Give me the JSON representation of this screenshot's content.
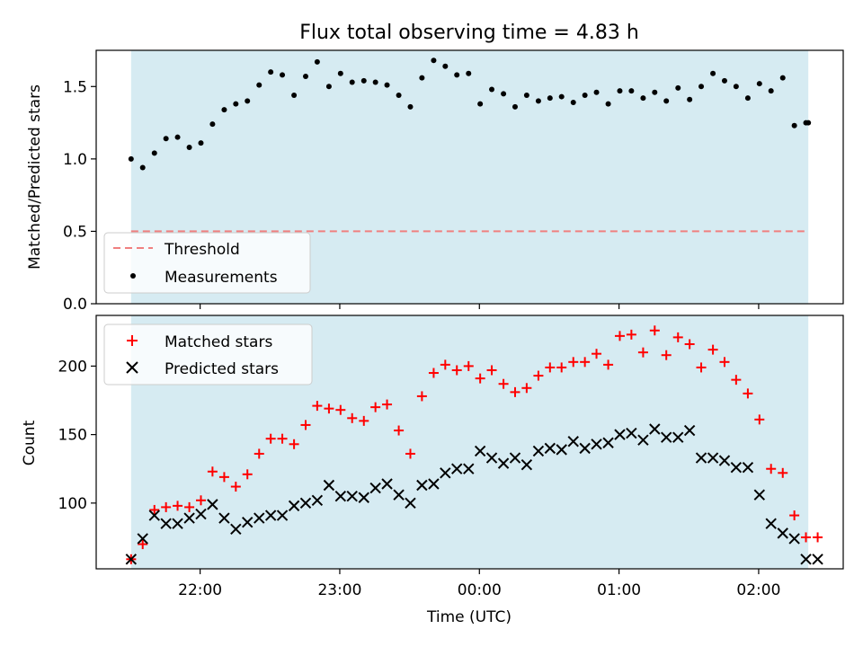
{
  "figure": {
    "title": "Flux total observing time = 4.83 h",
    "xlabel": "Time (UTC)",
    "x_ticks": [
      {
        "t": 21.9444,
        "label": "22:00"
      },
      {
        "t": 22.9444,
        "label": "23:00"
      },
      {
        "t": 23.9444,
        "label": "00:00"
      },
      {
        "t": 24.9444,
        "label": "01:00"
      },
      {
        "t": 25.9444,
        "label": "02:00"
      }
    ],
    "shade_color": "#add8e6",
    "shade_range": [
      21.45,
      26.3
    ]
  },
  "chart_data": [
    {
      "type": "scatter",
      "panel": "top",
      "ylabel": "Matched/Predicted stars",
      "xlim": [
        21.2,
        26.55
      ],
      "ylim": [
        0,
        1.75
      ],
      "yticks": [
        0.0,
        0.5,
        1.0,
        1.5
      ],
      "ytick_labels": [
        "0.0",
        "0.5",
        "1.0",
        "1.5"
      ],
      "legend_position": "lower-left",
      "threshold": {
        "name": "Threshold",
        "value": 0.5,
        "color": "#f08080"
      },
      "series": [
        {
          "name": "Measurements",
          "marker": "dot",
          "color": "#000000",
          "x": [
            21.45,
            21.533,
            21.617,
            21.7,
            21.783,
            21.867,
            21.95,
            22.033,
            22.117,
            22.2,
            22.283,
            22.367,
            22.45,
            22.533,
            22.617,
            22.7,
            22.783,
            22.867,
            22.95,
            23.033,
            23.117,
            23.2,
            23.283,
            23.367,
            23.45,
            23.533,
            23.617,
            23.7,
            23.783,
            23.867,
            23.95,
            24.033,
            24.117,
            24.2,
            24.283,
            24.367,
            24.45,
            24.533,
            24.617,
            24.7,
            24.783,
            24.867,
            24.95,
            25.033,
            25.117,
            25.2,
            25.283,
            25.367,
            25.45,
            25.533,
            25.617,
            25.7,
            25.783,
            25.867,
            25.95,
            26.033,
            26.117,
            26.2,
            26.283,
            26.3
          ],
          "values": [
            1.0,
            0.94,
            1.04,
            1.14,
            1.15,
            1.08,
            1.11,
            1.24,
            1.34,
            1.38,
            1.4,
            1.51,
            1.6,
            1.58,
            1.44,
            1.57,
            1.67,
            1.5,
            1.59,
            1.53,
            1.54,
            1.53,
            1.51,
            1.44,
            1.36,
            1.56,
            1.68,
            1.64,
            1.58,
            1.59,
            1.38,
            1.48,
            1.45,
            1.36,
            1.44,
            1.4,
            1.42,
            1.43,
            1.39,
            1.44,
            1.46,
            1.38,
            1.47,
            1.47,
            1.42,
            1.46,
            1.4,
            1.49,
            1.41,
            1.5,
            1.59,
            1.54,
            1.5,
            1.42,
            1.52,
            1.47,
            1.56,
            1.23,
            1.25,
            1.25
          ]
        }
      ]
    },
    {
      "type": "scatter",
      "panel": "bottom",
      "ylabel": "Count",
      "xlim": [
        21.2,
        26.55
      ],
      "ylim": [
        52,
        237
      ],
      "yticks": [
        100,
        150,
        200
      ],
      "ytick_labels": [
        "100",
        "150",
        "200"
      ],
      "legend_position": "upper-left",
      "series": [
        {
          "name": "Matched stars",
          "marker": "plus",
          "color": "#ff0000",
          "x": [
            21.45,
            21.533,
            21.617,
            21.7,
            21.783,
            21.867,
            21.95,
            22.033,
            22.117,
            22.2,
            22.283,
            22.367,
            22.45,
            22.533,
            22.617,
            22.7,
            22.783,
            22.867,
            22.95,
            23.033,
            23.117,
            23.2,
            23.283,
            23.367,
            23.45,
            23.533,
            23.617,
            23.7,
            23.783,
            23.867,
            23.95,
            24.033,
            24.117,
            24.2,
            24.283,
            24.367,
            24.45,
            24.533,
            24.617,
            24.7,
            24.783,
            24.867,
            24.95,
            25.033,
            25.117,
            25.2,
            25.283,
            25.367,
            25.45,
            25.533,
            25.617,
            25.7,
            25.783,
            25.867,
            25.95,
            26.033,
            26.117,
            26.2,
            26.283,
            26.367
          ],
          "values": [
            59,
            70,
            95,
            97,
            98,
            97,
            102,
            123,
            119,
            112,
            121,
            136,
            147,
            147,
            143,
            157,
            171,
            169,
            168,
            162,
            160,
            170,
            172,
            153,
            136,
            178,
            195,
            201,
            197,
            200,
            191,
            197,
            187,
            181,
            184,
            193,
            199,
            199,
            203,
            203,
            209,
            201,
            222,
            223,
            210,
            226,
            208,
            221,
            216,
            199,
            212,
            203,
            190,
            180,
            161,
            125,
            122,
            91,
            75,
            75
          ],
          "note_value": "Matched stars"
        },
        {
          "name": "Predicted stars",
          "marker": "x",
          "color": "#000000",
          "x": [
            21.45,
            21.533,
            21.617,
            21.7,
            21.783,
            21.867,
            21.95,
            22.033,
            22.117,
            22.2,
            22.283,
            22.367,
            22.45,
            22.533,
            22.617,
            22.7,
            22.783,
            22.867,
            22.95,
            23.033,
            23.117,
            23.2,
            23.283,
            23.367,
            23.45,
            23.533,
            23.617,
            23.7,
            23.783,
            23.867,
            23.95,
            24.033,
            24.117,
            24.2,
            24.283,
            24.367,
            24.45,
            24.533,
            24.617,
            24.7,
            24.783,
            24.867,
            24.95,
            25.033,
            25.117,
            25.2,
            25.283,
            25.367,
            25.45,
            25.533,
            25.617,
            25.7,
            25.783,
            25.867,
            25.95,
            26.033,
            26.117,
            26.2,
            26.283,
            26.367
          ],
          "values": [
            59,
            74,
            91,
            85,
            85,
            89,
            92,
            99,
            89,
            81,
            86,
            89,
            91,
            91,
            98,
            100,
            102,
            113,
            105,
            105,
            104,
            111,
            114,
            106,
            100,
            113,
            114,
            122,
            125,
            125,
            138,
            133,
            129,
            133,
            128,
            138,
            140,
            139,
            145,
            140,
            143,
            144,
            150,
            151,
            146,
            154,
            148,
            148,
            153,
            133,
            133,
            131,
            126,
            126,
            106,
            85,
            78,
            74,
            59,
            59
          ]
        }
      ]
    }
  ]
}
